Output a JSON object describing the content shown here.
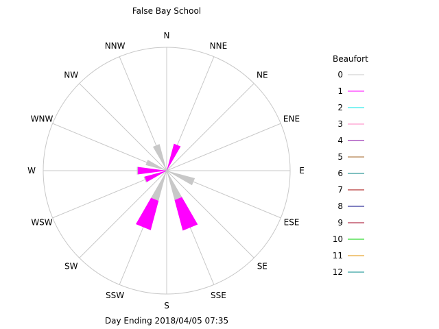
{
  "chart_data": {
    "type": "wind-rose",
    "title": "False Bay School",
    "subtitle": "Day Ending 2018/04/05 07:35",
    "legend_title": "Beaufort",
    "legend_placement": "right",
    "directions": [
      "N",
      "NNE",
      "NE",
      "ENE",
      "E",
      "ESE",
      "SE",
      "SSE",
      "S",
      "SSW",
      "SW",
      "WSW",
      "W",
      "WNW",
      "NW",
      "NNW"
    ],
    "radius_scale_percent": 30,
    "legend": [
      {
        "label": "0",
        "color": "#c8c8c8"
      },
      {
        "label": "1",
        "color": "#ff00ff"
      },
      {
        "label": "2",
        "color": "#00e5e5"
      },
      {
        "label": "3",
        "color": "#ff80c0"
      },
      {
        "label": "4",
        "color": "#8000a0"
      },
      {
        "label": "5",
        "color": "#a06020"
      },
      {
        "label": "6",
        "color": "#008080"
      },
      {
        "label": "7",
        "color": "#a00000"
      },
      {
        "label": "8",
        "color": "#000080"
      },
      {
        "label": "9",
        "color": "#a00020"
      },
      {
        "label": "10",
        "color": "#00d000"
      },
      {
        "label": "11",
        "color": "#e09000"
      },
      {
        "label": "12",
        "color": "#008888"
      }
    ],
    "series": [
      {
        "name": "0",
        "values": [
          0,
          0,
          0,
          0,
          0,
          7.1,
          0,
          7.4,
          0,
          7.6,
          0,
          5.8,
          7.3,
          5.3,
          0,
          6.7
        ]
      },
      {
        "name": "1",
        "values": [
          0,
          6.8,
          0,
          0,
          0,
          0,
          0,
          15.1,
          0,
          15.0,
          0,
          5.6,
          7.1,
          0,
          0,
          0
        ]
      }
    ]
  }
}
